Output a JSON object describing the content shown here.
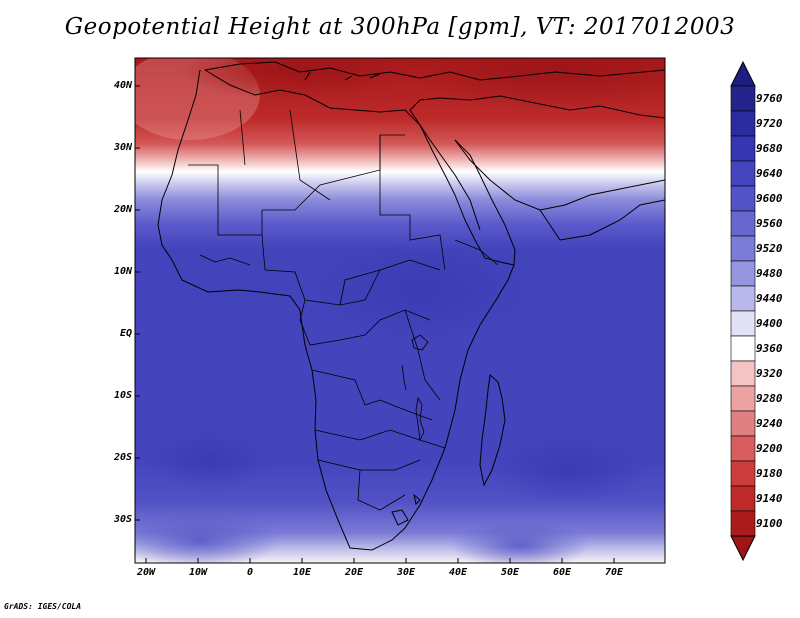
{
  "title": "Geopotential Height at 300hPa [gpm], VT: 2017012003",
  "credit": "GrADS: IGES/COLA",
  "lat_labels": [
    "40N",
    "30N",
    "20N",
    "10N",
    "EQ",
    "10S",
    "20S",
    "30S"
  ],
  "lon_labels": [
    "20W",
    "10W",
    "0",
    "10E",
    "20E",
    "30E",
    "40E",
    "50E",
    "60E",
    "70E"
  ],
  "colorbar": {
    "levels": [
      "9760",
      "9720",
      "9680",
      "9640",
      "9600",
      "9560",
      "9520",
      "9480",
      "9440",
      "9400",
      "9360",
      "9320",
      "9280",
      "9240",
      "9200",
      "9180",
      "9140",
      "9100"
    ],
    "colors": [
      "#24248c",
      "#2c2ca0",
      "#3636b2",
      "#4545c0",
      "#5454c8",
      "#6767d0",
      "#7c7cd8",
      "#9696e0",
      "#b8b8ea",
      "#e2e2f6",
      "#ffffff",
      "#f4c4c4",
      "#eaa2a2",
      "#e08080",
      "#d85e5e",
      "#cc3e3e",
      "#be2a2a",
      "#aa1c1c"
    ]
  },
  "map_colors": {
    "background": "#4343bb",
    "north_hot": "#b01e1e"
  }
}
